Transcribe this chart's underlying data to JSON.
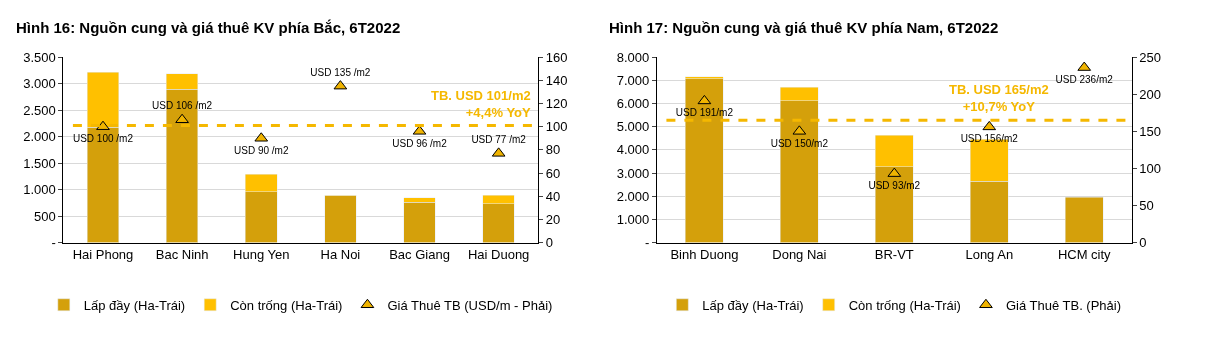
{
  "chart_data": [
    {
      "type": "bar",
      "stacked": true,
      "title": "Hình 16: Nguồn cung và giá thuê KV phía Bắc, 6T2022",
      "categories": [
        "Hai Phong",
        "Bac Ninh",
        "Hung Yen",
        "Ha Noi",
        "Bac Giang",
        "Hai Duong"
      ],
      "series": [
        {
          "name": "Lấp đầy (Ha-Trái)",
          "color": "#d4a00b",
          "values": [
            2180,
            2890,
            960,
            880,
            760,
            730
          ]
        },
        {
          "name": "Còn trống (Ha-Trái)",
          "color": "#ffc000",
          "values": [
            1040,
            300,
            330,
            10,
            90,
            160
          ]
        },
        {
          "name": "Giá Thuê TB (USD/m - Phải)",
          "type": "scatter",
          "axis": "y2",
          "marker": "triangle",
          "color": "#f0b400",
          "values": [
            100,
            106,
            90,
            135,
            96,
            77
          ],
          "value_labels": [
            "USD 100 /m2",
            "USD 106 /m2",
            "USD 90 /m2",
            "USD 135 /m2",
            "USD 96 /m2",
            "USD 77 /m2"
          ]
        }
      ],
      "ylim": [
        0,
        3500
      ],
      "yticks": [
        {
          "value": 0,
          "label": "-"
        },
        500,
        {
          "value": 1000,
          "label": "1.000"
        },
        {
          "value": 1500,
          "label": "1.500"
        },
        {
          "value": 2000,
          "label": "2.000"
        },
        {
          "value": 2500,
          "label": "2.500"
        },
        {
          "value": 3000,
          "label": "3.000"
        },
        {
          "value": 3500,
          "label": "3.500"
        }
      ],
      "y2lim": [
        0,
        160
      ],
      "y2ticks": [
        0,
        20,
        40,
        60,
        80,
        100,
        120,
        140,
        160
      ],
      "ref_lines": [
        {
          "axis": "y2",
          "value": 101,
          "label": "TB. USD 101/m2\n+4,4% YoY",
          "color": "#f5b800",
          "line_style": "dashed"
        }
      ],
      "grid": "y",
      "legend": "bottom"
    },
    {
      "type": "bar",
      "stacked": true,
      "title": "Hình 17: Nguồn cung và giá thuê KV phía Nam, 6T2022",
      "categories": [
        "Binh Duong",
        "Dong Nai",
        "BR-VT",
        "Long An",
        "HCM city"
      ],
      "series": [
        {
          "name": "Lấp đầy (Ha-Trái)",
          "color": "#d4a00b",
          "values": [
            7070,
            6120,
            3270,
            2650,
            1960
          ]
        },
        {
          "name": "Còn trống (Ha-Trái)",
          "color": "#ffc000",
          "values": [
            80,
            590,
            1360,
            1810,
            null
          ]
        },
        {
          "name": "Giá Thuê TB. (Phải)",
          "type": "scatter",
          "axis": "y2",
          "marker": "triangle",
          "color": "#f0b400",
          "values": [
            191,
            150,
            93,
            156,
            236
          ],
          "value_labels": [
            "USD 191/m2",
            "USD 150/m2",
            "USD 93/m2",
            "USD 156/m2",
            "USD 236/m2"
          ]
        }
      ],
      "ylim": [
        0,
        8000
      ],
      "yticks": [
        {
          "value": 0,
          "label": "-"
        },
        {
          "value": 1000,
          "label": "1.000"
        },
        {
          "value": 2000,
          "label": "2.000"
        },
        {
          "value": 3000,
          "label": "3.000"
        },
        {
          "value": 4000,
          "label": "4.000"
        },
        {
          "value": 5000,
          "label": "5.000"
        },
        {
          "value": 6000,
          "label": "6.000"
        },
        {
          "value": 7000,
          "label": "7.000"
        },
        {
          "value": 8000,
          "label": "8.000"
        }
      ],
      "y2lim": [
        0,
        250
      ],
      "y2ticks": [
        0,
        50,
        100,
        150,
        200,
        250
      ],
      "ref_lines": [
        {
          "axis": "y2",
          "value": 165,
          "label": "TB. USD 165/m2\n+10,7% YoY",
          "color": "#f5b800",
          "line_style": "dashed"
        }
      ],
      "grid": "y",
      "legend": "bottom"
    }
  ]
}
